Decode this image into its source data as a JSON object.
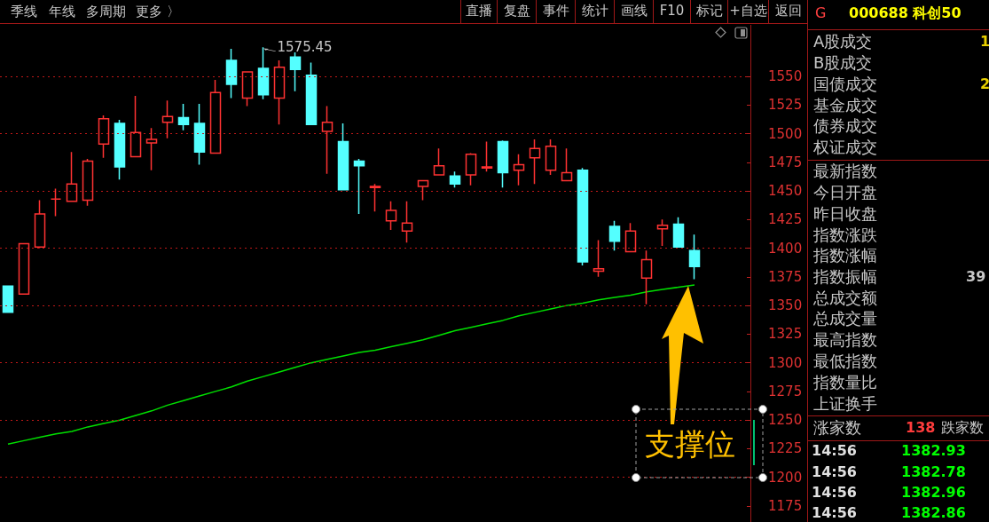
{
  "chart_data": [
    {
      "type": "candlestick",
      "categories": [
        null,
        null,
        null,
        null,
        null,
        null,
        null,
        null,
        null,
        null,
        null,
        null,
        null,
        null,
        null,
        null,
        null,
        null,
        null,
        null,
        null,
        null,
        null,
        null,
        null,
        null,
        null,
        null,
        null,
        null,
        null,
        null,
        null,
        null,
        null,
        null,
        null,
        null,
        null,
        null,
        null,
        null,
        null,
        null
      ],
      "series": [
        {
          "type": "candlestick",
          "ohlc": [
            [
              1367,
              1367,
              1344,
              1344
            ],
            [
              1360,
              1404,
              1360,
              1404
            ],
            [
              1401,
              1442,
              1400,
              1430
            ],
            [
              1443,
              1452,
              1428,
              1443
            ],
            [
              1441,
              1484,
              1441,
              1456
            ],
            [
              1442,
              1478,
              1437,
              1476
            ],
            [
              1491,
              1516,
              1479,
              1513
            ],
            [
              1509,
              1512,
              1460,
              1471
            ],
            [
              1480,
              1533,
              1480,
              1501
            ],
            [
              1492,
              1505,
              1468,
              1495
            ],
            [
              1510,
              1529,
              1496,
              1515
            ],
            [
              1514,
              1526,
              1503,
              1508
            ],
            [
              1509,
              1526,
              1473,
              1484
            ],
            [
              1483,
              1547,
              1483,
              1536
            ],
            [
              1564,
              1574,
              1531,
              1543
            ],
            [
              1531,
              1554,
              1524,
              1554
            ],
            [
              1557,
              1575.45,
              1530,
              1534
            ],
            [
              1531,
              1564,
              1508,
              1558
            ],
            [
              1567,
              1571,
              1537,
              1556
            ],
            [
              1551,
              1562,
              1508,
              1508
            ],
            [
              1502,
              1524,
              1465,
              1510
            ],
            [
              1493,
              1509,
              1451,
              1451
            ],
            [
              1476,
              1478,
              1430,
              1472
            ],
            [
              1453,
              1456,
              1432,
              1454
            ],
            [
              1424,
              1441,
              1416,
              1433
            ],
            [
              1415,
              1441,
              1405,
              1422
            ],
            [
              1454,
              1459,
              1442,
              1459
            ],
            [
              1464,
              1487,
              1464,
              1472
            ],
            [
              1463,
              1467,
              1453,
              1456
            ],
            [
              1464,
              1483,
              1455,
              1482
            ],
            [
              1470,
              1493,
              1467,
              1471
            ],
            [
              1493,
              1494,
              1453,
              1466
            ],
            [
              1468,
              1482,
              1455,
              1473
            ],
            [
              1479,
              1495,
              1456,
              1487
            ],
            [
              1468,
              1495,
              1464,
              1489
            ],
            [
              1459,
              1487,
              1459,
              1466
            ],
            [
              1468,
              1470,
              1385,
              1388
            ],
            [
              1380,
              1407,
              1375,
              1382
            ],
            [
              1419,
              1424,
              1398,
              1406
            ],
            [
              1397,
              1422,
              1397,
              1415
            ],
            [
              1374,
              1398,
              1351,
              1390
            ],
            [
              1417,
              1425,
              1402,
              1420
            ],
            [
              1421,
              1427,
              1401,
              1401
            ],
            [
              1398,
              1412,
              1373,
              1384
            ]
          ],
          "colors": [
            "#54ffff",
            "#ff3232",
            "#ff3232",
            "#ff3232",
            "#ff3232",
            "#ff3232",
            "#ff3232",
            "#54ffff",
            "#ff3232",
            "#ff3232",
            "#ff3232",
            "#54ffff",
            "#54ffff",
            "#ff3232",
            "#54ffff",
            "#ff3232",
            "#54ffff",
            "#ff3232",
            "#54ffff",
            "#54ffff",
            "#ff3232",
            "#54ffff",
            "#54ffff",
            "#ff3232",
            "#ff3232",
            "#ff3232",
            "#ff3232",
            "#ff3232",
            "#54ffff",
            "#ff3232",
            "#ff3232",
            "#54ffff",
            "#ff3232",
            "#ff3232",
            "#ff3232",
            "#ff3232",
            "#54ffff",
            "#ff3232",
            "#54ffff",
            "#ff3232",
            "#ff3232",
            "#ff3232",
            "#54ffff",
            "#54ffff"
          ]
        },
        {
          "type": "line",
          "color": "#00e000",
          "values": [
            1229,
            1232,
            1235,
            1238,
            1240,
            1244,
            1247,
            1250,
            1254,
            1258,
            1263,
            1267,
            1271,
            1275,
            1279,
            1284,
            1288,
            1292,
            1296,
            1300,
            1303,
            1306,
            1309,
            1311,
            1314,
            1317,
            1320,
            1324,
            1328,
            1331,
            1334,
            1337,
            1341,
            1344,
            1347,
            1350,
            1352,
            1355,
            1357,
            1359,
            1362,
            1364,
            1366,
            1368
          ]
        }
      ],
      "ylim": [
        1161,
        1595
      ],
      "yticks": [
        1175,
        1200,
        1225,
        1250,
        1275,
        1300,
        1325,
        1350,
        1375,
        1400,
        1425,
        1450,
        1475,
        1500,
        1525,
        1550
      ],
      "grid": "y",
      "tick_labels": "y",
      "annotations": [
        "1575.45",
        "支撑位"
      ]
    },
    {
      "type": "other",
      "annotations": [
        "G",
        "000688 科创50",
        "A股成交",
        "1",
        "B股成交",
        "国债成交",
        "2",
        "基金成交",
        "债券成交",
        "权证成交",
        "最新指数",
        "今日开盘",
        "昨日收盘",
        "指数涨跌",
        "指数涨幅",
        "指数振幅",
        "39",
        "总成交额",
        "总成交量",
        "最高指数",
        "最低指数",
        "指数量比",
        "上证换手",
        "涨家数",
        "138",
        "跌家数",
        "14:56",
        "1382.93",
        "14:56",
        "1382.78",
        "14:56",
        "1382.96",
        "14:56",
        "1382.86"
      ]
    },
    {
      "type": "other",
      "annotations": [
        "季线",
        "年线",
        "多周期",
        "更多 〉",
        "直播",
        "复盘",
        "事件",
        "统计",
        "画线",
        "F10",
        "标记",
        "+自选",
        "返回"
      ]
    }
  ]
}
